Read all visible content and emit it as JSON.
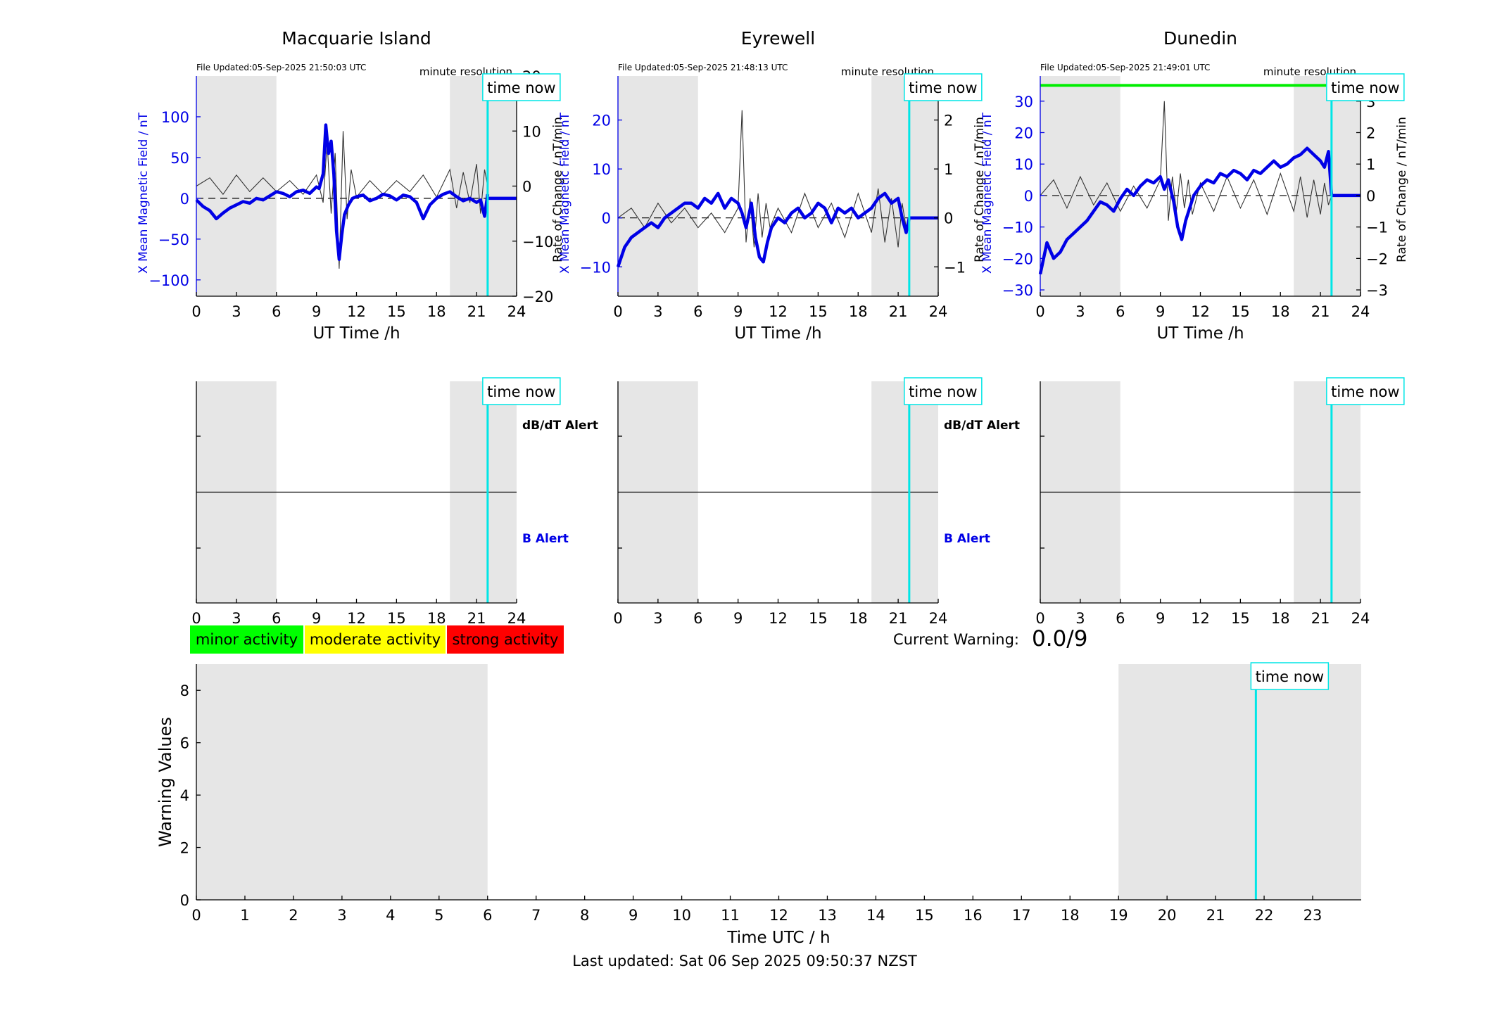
{
  "chart_data": [
    {
      "type": "line",
      "title": "Macquarie Island",
      "file_updated": "File Updated:05-Sep-2025 21:50:03 UTC",
      "resolution": "minute resolution",
      "time_now_label": "time now",
      "xlabel": "UT Time /h",
      "ylabel_left": "X Mean Magnetic Field / nT",
      "ylabel_right": "Rate of Change / nT/min",
      "xlim": [
        0,
        24
      ],
      "xticks": [
        0,
        3,
        6,
        9,
        12,
        15,
        18,
        21,
        24
      ],
      "ylim_left": [
        -120,
        150
      ],
      "yticks_left": [
        100,
        50,
        0,
        -50,
        -100
      ],
      "ylim_right": [
        -20,
        20
      ],
      "yticks_right": [
        20,
        10,
        0,
        -10,
        -20
      ],
      "shaded_hours": [
        [
          0,
          6
        ],
        [
          19,
          24
        ]
      ],
      "time_now_hour": 21.83,
      "threshold_level": null,
      "series": [
        {
          "kind": "X field (left axis)",
          "color": "#0000e6",
          "x": [
            0,
            0.5,
            1,
            1.5,
            2,
            2.5,
            3,
            3.5,
            4,
            4.5,
            5,
            5.5,
            6,
            6.5,
            7,
            7.5,
            8,
            8.5,
            9,
            9.2,
            9.5,
            9.7,
            9.9,
            10.1,
            10.3,
            10.5,
            10.7,
            10.9,
            11.1,
            11.4,
            11.7,
            12,
            12.5,
            13,
            13.5,
            14,
            14.5,
            15,
            15.5,
            16,
            16.5,
            17,
            17.5,
            18,
            18.5,
            19,
            19.5,
            20,
            20.5,
            21,
            21.3,
            21.6,
            21.83
          ],
          "y": [
            -2,
            -10,
            -15,
            -25,
            -18,
            -12,
            -8,
            -4,
            -6,
            0,
            -2,
            3,
            8,
            6,
            2,
            8,
            10,
            6,
            14,
            12,
            30,
            90,
            55,
            70,
            30,
            -40,
            -75,
            -45,
            -20,
            -8,
            0,
            2,
            4,
            -3,
            0,
            5,
            3,
            -2,
            4,
            2,
            -5,
            -25,
            -8,
            0,
            5,
            8,
            2,
            -3,
            0,
            -5,
            -2,
            -22,
            5
          ]
        },
        {
          "kind": "rate of change (right axis)",
          "color": "#333333",
          "x": [
            0,
            1,
            2,
            3,
            4,
            5,
            6,
            7,
            8,
            9,
            9.5,
            9.8,
            10.1,
            10.4,
            10.7,
            11,
            11.3,
            11.6,
            12,
            13,
            14,
            15,
            16,
            17,
            18,
            19,
            19.5,
            20,
            20.5,
            21,
            21.3,
            21.6,
            21.83
          ],
          "y": [
            0,
            1.5,
            -1.5,
            2,
            -1,
            1.5,
            -1,
            1,
            -1.5,
            2,
            -3,
            8,
            -5,
            6,
            -15,
            10,
            -6,
            3,
            -2,
            1,
            -1.5,
            1,
            -1,
            2,
            -2,
            3,
            -4,
            2.5,
            -3,
            4,
            -5,
            3,
            0
          ]
        }
      ]
    },
    {
      "type": "line",
      "title": "Eyrewell",
      "file_updated": "File Updated:05-Sep-2025 21:48:13 UTC",
      "resolution": "minute resolution",
      "time_now_label": "time now",
      "xlabel": "UT Time /h",
      "ylabel_left": "X Mean Magnetic Field / nT",
      "ylabel_right": "Rate of Change / nT/min",
      "xlim": [
        0,
        24
      ],
      "xticks": [
        0,
        3,
        6,
        9,
        12,
        15,
        18,
        21,
        24
      ],
      "ylim_left": [
        -16,
        29
      ],
      "yticks_left": [
        20,
        10,
        0,
        -10
      ],
      "ylim_right": [
        -1.6,
        2.9
      ],
      "yticks_right": [
        2,
        1,
        0,
        -1
      ],
      "shaded_hours": [
        [
          0,
          6
        ],
        [
          19,
          24
        ]
      ],
      "time_now_hour": 21.83,
      "threshold_level": null,
      "series": [
        {
          "kind": "X field (left axis)",
          "color": "#0000e6",
          "x": [
            0,
            0.5,
            1,
            1.5,
            2,
            2.5,
            3,
            3.5,
            4,
            4.5,
            5,
            5.5,
            6,
            6.5,
            7,
            7.5,
            8,
            8.5,
            9,
            9.3,
            9.6,
            10,
            10.3,
            10.6,
            10.9,
            11.2,
            11.5,
            12,
            12.5,
            13,
            13.5,
            14,
            14.5,
            15,
            15.5,
            16,
            16.5,
            17,
            17.5,
            18,
            18.5,
            19,
            19.5,
            20,
            20.5,
            21,
            21.3,
            21.6,
            21.83
          ],
          "y": [
            -10,
            -6,
            -4,
            -3,
            -2,
            -1,
            -2,
            0,
            1,
            2,
            3,
            3,
            2,
            4,
            3,
            5,
            2,
            4,
            3,
            1,
            -2,
            3,
            -4,
            -8,
            -9,
            -5,
            -2,
            0,
            -1,
            1,
            2,
            0,
            1,
            3,
            2,
            -1,
            2,
            1,
            2,
            0,
            1,
            2,
            4,
            5,
            3,
            4,
            0,
            -3,
            0
          ]
        },
        {
          "kind": "rate of change (right axis)",
          "color": "#333333",
          "x": [
            0,
            1,
            2,
            3,
            4,
            5,
            6,
            7,
            8,
            9,
            9.3,
            9.6,
            9.9,
            10.2,
            10.5,
            10.8,
            11.1,
            11.4,
            12,
            13,
            14,
            15,
            16,
            17,
            18,
            19,
            19.5,
            20,
            20.5,
            21,
            21.3,
            21.6,
            21.83
          ],
          "y": [
            0,
            0.2,
            -0.2,
            0.3,
            -0.1,
            0.2,
            -0.2,
            0.1,
            -0.3,
            0.2,
            2.2,
            -0.5,
            0.4,
            -0.6,
            0.5,
            -0.4,
            0.3,
            -0.2,
            0.2,
            -0.3,
            0.5,
            -0.2,
            0.3,
            -0.4,
            0.5,
            -0.3,
            0.6,
            -0.5,
            0.4,
            -0.6,
            0.3,
            -0.2,
            0
          ]
        }
      ]
    },
    {
      "type": "line",
      "title": "Dunedin",
      "file_updated": "File Updated:05-Sep-2025 21:49:01 UTC",
      "resolution": "minute resolution",
      "time_now_label": "time now",
      "xlabel": "UT Time /h",
      "ylabel_left": "X Mean Magnetic Field / nT",
      "ylabel_right": "Rate of Change / nT/min",
      "xlim": [
        0,
        24
      ],
      "xticks": [
        0,
        3,
        6,
        9,
        12,
        15,
        18,
        21,
        24
      ],
      "ylim_left": [
        -32,
        38
      ],
      "yticks_left": [
        30,
        20,
        10,
        0,
        -10,
        -20,
        -30
      ],
      "ylim_right": [
        -3.2,
        3.8
      ],
      "yticks_right": [
        3,
        2,
        1,
        0,
        -1,
        -2,
        -3
      ],
      "shaded_hours": [
        [
          0,
          6
        ],
        [
          19,
          24
        ]
      ],
      "time_now_hour": 21.83,
      "threshold_level": 35,
      "threshold_color": "#00ee00",
      "series": [
        {
          "kind": "X field (left axis)",
          "color": "#0000e6",
          "x": [
            0,
            0.5,
            1,
            1.5,
            2,
            2.5,
            3,
            3.5,
            4,
            4.5,
            5,
            5.5,
            6,
            6.5,
            7,
            7.5,
            8,
            8.5,
            9,
            9.3,
            9.6,
            10,
            10.3,
            10.6,
            10.9,
            11.2,
            11.5,
            12,
            12.5,
            13,
            13.5,
            14,
            14.5,
            15,
            15.5,
            16,
            16.5,
            17,
            17.5,
            18,
            18.5,
            19,
            19.5,
            20,
            20.5,
            21,
            21.3,
            21.6,
            21.83
          ],
          "y": [
            -25,
            -15,
            -20,
            -18,
            -14,
            -12,
            -10,
            -8,
            -5,
            -2,
            -3,
            -5,
            -1,
            2,
            0,
            3,
            5,
            4,
            6,
            2,
            5,
            -2,
            -10,
            -14,
            -8,
            -4,
            0,
            3,
            5,
            4,
            7,
            6,
            8,
            7,
            5,
            8,
            7,
            9,
            11,
            9,
            10,
            12,
            13,
            15,
            13,
            11,
            9,
            14,
            0
          ]
        },
        {
          "kind": "rate of change (right axis)",
          "color": "#333333",
          "x": [
            0,
            1,
            2,
            3,
            4,
            5,
            6,
            7,
            8,
            9,
            9.3,
            9.6,
            9.9,
            10.2,
            10.5,
            10.8,
            11.1,
            11.4,
            12,
            13,
            14,
            15,
            16,
            17,
            18,
            19,
            19.5,
            20,
            20.5,
            21,
            21.3,
            21.6,
            21.83
          ],
          "y": [
            0,
            0.5,
            -0.4,
            0.6,
            -0.3,
            0.4,
            -0.5,
            0.3,
            -0.4,
            0.5,
            3,
            -0.8,
            0.6,
            -0.5,
            0.7,
            -0.4,
            0.5,
            -0.6,
            0.4,
            -0.5,
            0.6,
            -0.4,
            0.5,
            -0.6,
            0.7,
            -0.5,
            0.6,
            -0.7,
            0.5,
            -0.6,
            0.4,
            -0.3,
            0
          ]
        }
      ]
    },
    {
      "type": "line",
      "title": "",
      "time_now_label": "time now",
      "xlim": [
        0,
        24
      ],
      "xticks": [
        0,
        3,
        6,
        9,
        12,
        15,
        18,
        21,
        24
      ],
      "shaded_hours": [
        [
          0,
          6
        ],
        [
          19,
          24
        ]
      ],
      "time_now_hour": 21.83,
      "alert_labels": [
        "dB/dT Alert",
        "B Alert"
      ],
      "series": []
    },
    {
      "type": "line",
      "title": "",
      "time_now_label": "time now",
      "xlim": [
        0,
        24
      ],
      "xticks": [
        0,
        3,
        6,
        9,
        12,
        15,
        18,
        21,
        24
      ],
      "shaded_hours": [
        [
          0,
          6
        ],
        [
          19,
          24
        ]
      ],
      "time_now_hour": 21.83,
      "alert_labels": [
        "dB/dT Alert",
        "B Alert"
      ],
      "series": []
    },
    {
      "type": "line",
      "title": "",
      "time_now_label": "time now",
      "xlim": [
        0,
        24
      ],
      "xticks": [
        0,
        3,
        6,
        9,
        12,
        15,
        18,
        21,
        24
      ],
      "shaded_hours": [
        [
          0,
          6
        ],
        [
          19,
          24
        ]
      ],
      "time_now_hour": 21.83,
      "alert_labels": [],
      "series": []
    },
    {
      "type": "line",
      "title": "",
      "xlabel": "Time UTC / h",
      "ylabel": "Warning Values",
      "time_now_label": "time now",
      "xlim": [
        0,
        24
      ],
      "xticks": [
        0,
        1,
        2,
        3,
        4,
        5,
        6,
        7,
        8,
        9,
        10,
        11,
        12,
        13,
        14,
        15,
        16,
        17,
        18,
        19,
        20,
        21,
        22,
        23
      ],
      "ylim": [
        0,
        9
      ],
      "yticks": [
        0,
        2,
        4,
        6,
        8
      ],
      "shaded_hours": [
        [
          0,
          6
        ],
        [
          19,
          24
        ]
      ],
      "time_now_hour": 21.83,
      "series": []
    }
  ],
  "legend": {
    "items": [
      {
        "label": "minor activity",
        "color": "#00ff00"
      },
      {
        "label": "moderate activity",
        "color": "#ffff00"
      },
      {
        "label": "strong activity",
        "color": "#ff0000"
      }
    ]
  },
  "current_warning": {
    "label": "Current Warning:",
    "value": "0.0/9"
  },
  "footer": {
    "last_updated": "Last updated: Sat 06 Sep 2025 09:50:37 NZST"
  },
  "colors": {
    "shade": "#e6e6e6",
    "time_now": "#00e6e6",
    "field": "#0000e6",
    "rate": "#333333",
    "axis_left": "#0000e6",
    "alert_b": "#0000e6"
  }
}
